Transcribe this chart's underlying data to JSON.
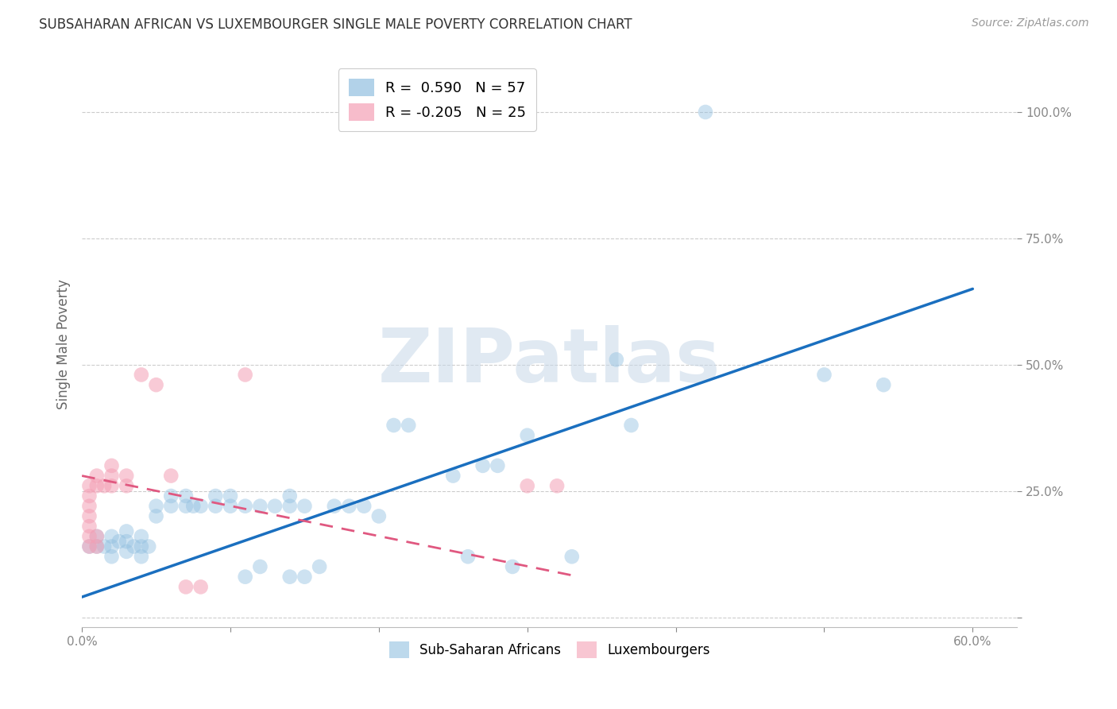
{
  "title": "SUBSAHARAN AFRICAN VS LUXEMBOURGER SINGLE MALE POVERTY CORRELATION CHART",
  "source": "Source: ZipAtlas.com",
  "ylabel": "Single Male Poverty",
  "xlim": [
    0.0,
    0.63
  ],
  "ylim": [
    -0.02,
    1.1
  ],
  "xticks": [
    0.0,
    0.1,
    0.2,
    0.3,
    0.4,
    0.5,
    0.6
  ],
  "xticklabels": [
    "0.0%",
    "",
    "",
    "",
    "",
    "",
    "60.0%"
  ],
  "yticks": [
    0.0,
    0.25,
    0.5,
    0.75,
    1.0
  ],
  "yticklabels": [
    "",
    "25.0%",
    "50.0%",
    "75.0%",
    "100.0%"
  ],
  "r_blue": 0.59,
  "n_blue": 57,
  "r_pink": -0.205,
  "n_pink": 25,
  "blue_color": "#92C0E0",
  "pink_color": "#F4A0B5",
  "trendline_blue": "#1A6FBF",
  "trendline_pink": "#E05880",
  "watermark": "ZIPatlas",
  "blue_scatter": [
    [
      0.005,
      0.14
    ],
    [
      0.01,
      0.14
    ],
    [
      0.01,
      0.16
    ],
    [
      0.015,
      0.14
    ],
    [
      0.02,
      0.12
    ],
    [
      0.02,
      0.14
    ],
    [
      0.02,
      0.16
    ],
    [
      0.025,
      0.15
    ],
    [
      0.03,
      0.13
    ],
    [
      0.03,
      0.15
    ],
    [
      0.03,
      0.17
    ],
    [
      0.035,
      0.14
    ],
    [
      0.04,
      0.12
    ],
    [
      0.04,
      0.14
    ],
    [
      0.04,
      0.16
    ],
    [
      0.045,
      0.14
    ],
    [
      0.05,
      0.2
    ],
    [
      0.05,
      0.22
    ],
    [
      0.06,
      0.22
    ],
    [
      0.06,
      0.24
    ],
    [
      0.07,
      0.22
    ],
    [
      0.07,
      0.24
    ],
    [
      0.075,
      0.22
    ],
    [
      0.08,
      0.22
    ],
    [
      0.09,
      0.22
    ],
    [
      0.09,
      0.24
    ],
    [
      0.1,
      0.22
    ],
    [
      0.1,
      0.24
    ],
    [
      0.11,
      0.08
    ],
    [
      0.11,
      0.22
    ],
    [
      0.12,
      0.1
    ],
    [
      0.12,
      0.22
    ],
    [
      0.13,
      0.22
    ],
    [
      0.14,
      0.08
    ],
    [
      0.14,
      0.22
    ],
    [
      0.14,
      0.24
    ],
    [
      0.15,
      0.08
    ],
    [
      0.15,
      0.22
    ],
    [
      0.16,
      0.1
    ],
    [
      0.17,
      0.22
    ],
    [
      0.18,
      0.22
    ],
    [
      0.19,
      0.22
    ],
    [
      0.2,
      0.2
    ],
    [
      0.21,
      0.38
    ],
    [
      0.22,
      0.38
    ],
    [
      0.25,
      0.28
    ],
    [
      0.26,
      0.12
    ],
    [
      0.27,
      0.3
    ],
    [
      0.28,
      0.3
    ],
    [
      0.29,
      0.1
    ],
    [
      0.3,
      0.36
    ],
    [
      0.33,
      0.12
    ],
    [
      0.36,
      0.51
    ],
    [
      0.37,
      0.38
    ],
    [
      0.42,
      1.0
    ],
    [
      0.5,
      0.48
    ],
    [
      0.54,
      0.46
    ]
  ],
  "pink_scatter": [
    [
      0.005,
      0.14
    ],
    [
      0.005,
      0.16
    ],
    [
      0.005,
      0.18
    ],
    [
      0.005,
      0.2
    ],
    [
      0.005,
      0.22
    ],
    [
      0.005,
      0.24
    ],
    [
      0.005,
      0.26
    ],
    [
      0.01,
      0.14
    ],
    [
      0.01,
      0.16
    ],
    [
      0.01,
      0.26
    ],
    [
      0.01,
      0.28
    ],
    [
      0.015,
      0.26
    ],
    [
      0.02,
      0.26
    ],
    [
      0.02,
      0.28
    ],
    [
      0.02,
      0.3
    ],
    [
      0.03,
      0.26
    ],
    [
      0.03,
      0.28
    ],
    [
      0.04,
      0.48
    ],
    [
      0.05,
      0.46
    ],
    [
      0.06,
      0.28
    ],
    [
      0.07,
      0.06
    ],
    [
      0.08,
      0.06
    ],
    [
      0.11,
      0.48
    ],
    [
      0.3,
      0.26
    ],
    [
      0.32,
      0.26
    ]
  ],
  "blue_trendline_x": [
    0.0,
    0.6
  ],
  "blue_trendline_y": [
    0.04,
    0.65
  ],
  "pink_trendline_x": [
    0.0,
    0.335
  ],
  "pink_trendline_y": [
    0.28,
    0.08
  ]
}
